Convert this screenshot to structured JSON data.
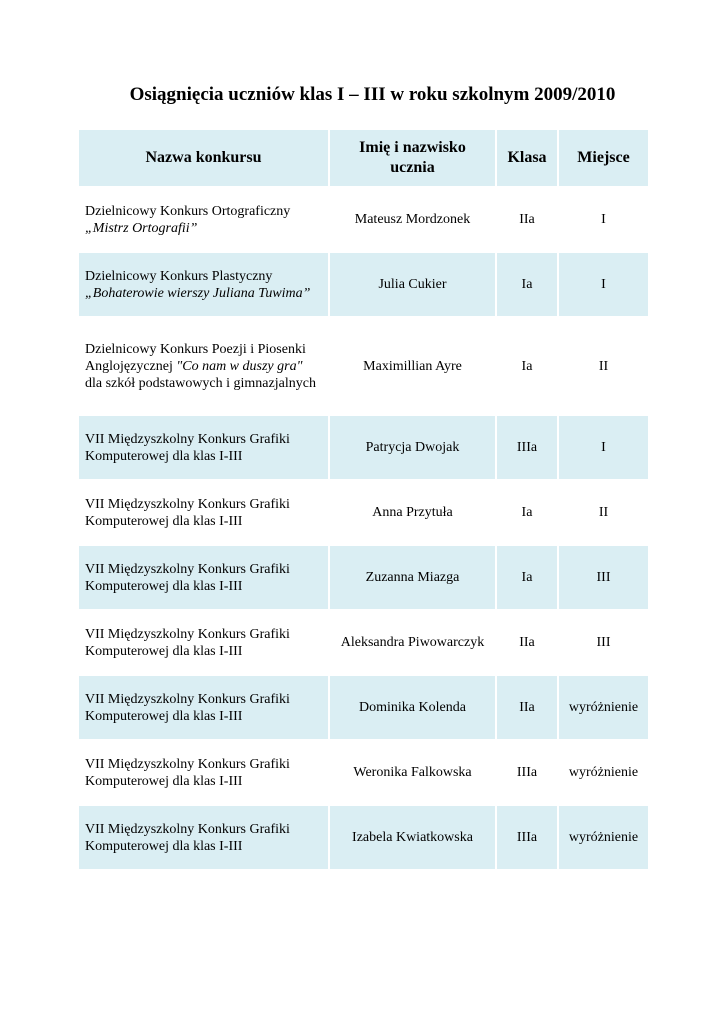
{
  "title": "Osiągnięcia uczniów klas I – III w roku szkolnym 2009/2010",
  "headers": [
    "Nazwa konkursu",
    "Imię i nazwisko ucznia",
    "Klasa",
    "Miejsce"
  ],
  "rows": [
    {
      "contest_plain": "Dzielnicowy Konkurs Ortograficzny",
      "contest_italic": "„Mistrz Ortografii”",
      "contest_rest": "",
      "student": "Mateusz Mordzonek",
      "klasa": "IIa",
      "miejsce": "I"
    },
    {
      "contest_plain": "Dzielnicowy Konkurs Plastyczny",
      "contest_italic": "„Bohaterowie wierszy Juliana Tuwima”",
      "contest_rest": "",
      "student": "Julia Cukier",
      "klasa": "Ia",
      "miejsce": "I"
    },
    {
      "contest_plain": "Dzielnicowy Konkurs Poezji i Piosenki Anglojęzycznej",
      "contest_italic": "\"Co nam w duszy gra\"",
      "contest_rest": "dla szkół podstawowych i gimnazjalnych",
      "student": "Maximillian Ayre",
      "klasa": "Ia",
      "miejsce": "II"
    },
    {
      "contest_plain": "VII Międzyszkolny Konkurs Grafiki Komputerowej dla klas I-III",
      "contest_italic": "",
      "contest_rest": "",
      "student": "Patrycja Dwojak",
      "klasa": "IIIa",
      "miejsce": "I"
    },
    {
      "contest_plain": "VII Międzyszkolny Konkurs Grafiki Komputerowej dla klas I-III",
      "contest_italic": "",
      "contest_rest": "",
      "student": "Anna Przytuła",
      "klasa": "Ia",
      "miejsce": "II"
    },
    {
      "contest_plain": "VII Międzyszkolny Konkurs Grafiki Komputerowej dla klas I-III",
      "contest_italic": "",
      "contest_rest": "",
      "student": "Zuzanna Miazga",
      "klasa": "Ia",
      "miejsce": "III"
    },
    {
      "contest_plain": "VII Międzyszkolny Konkurs Grafiki Komputerowej dla klas I-III",
      "contest_italic": "",
      "contest_rest": "",
      "student": "Aleksandra Piwowarczyk",
      "klasa": "IIa",
      "miejsce": "III"
    },
    {
      "contest_plain": "VII Międzyszkolny Konkurs Grafiki Komputerowej dla klas I-III",
      "contest_italic": "",
      "contest_rest": "",
      "student": "Dominika Kolenda",
      "klasa": "IIa",
      "miejsce": "wyróżnienie"
    },
    {
      "contest_plain": "VII Międzyszkolny Konkurs Grafiki Komputerowej dla klas I-III",
      "contest_italic": "",
      "contest_rest": "",
      "student": "Weronika Falkowska",
      "klasa": "IIIa",
      "miejsce": "wyróżnienie"
    },
    {
      "contest_plain": "VII Międzyszkolny Konkurs Grafiki Komputerowej dla klas I-III",
      "contest_italic": "",
      "contest_rest": "",
      "student": "Izabela Kwiatkowska",
      "klasa": "IIIa",
      "miejsce": "wyróżnienie"
    }
  ],
  "colors": {
    "shade": "#daeef3"
  }
}
